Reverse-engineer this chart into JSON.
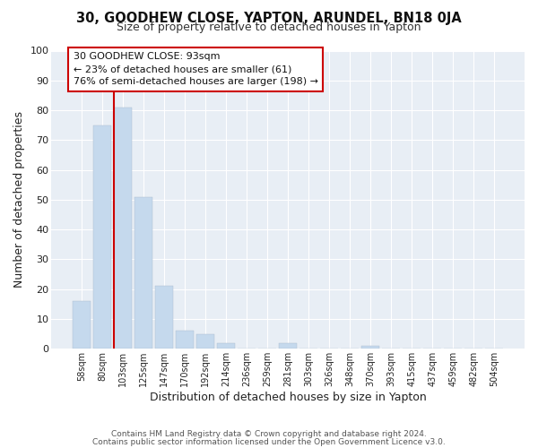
{
  "title": "30, GOODHEW CLOSE, YAPTON, ARUNDEL, BN18 0JA",
  "subtitle": "Size of property relative to detached houses in Yapton",
  "xlabel": "Distribution of detached houses by size in Yapton",
  "ylabel": "Number of detached properties",
  "bar_labels": [
    "58sqm",
    "80sqm",
    "103sqm",
    "125sqm",
    "147sqm",
    "170sqm",
    "192sqm",
    "214sqm",
    "236sqm",
    "259sqm",
    "281sqm",
    "303sqm",
    "326sqm",
    "348sqm",
    "370sqm",
    "393sqm",
    "415sqm",
    "437sqm",
    "459sqm",
    "482sqm",
    "504sqm"
  ],
  "bar_values": [
    16,
    75,
    81,
    51,
    21,
    6,
    5,
    2,
    0,
    0,
    2,
    0,
    0,
    0,
    1,
    0,
    0,
    0,
    0,
    0,
    0
  ],
  "bar_color": "#c5d9ed",
  "ylim": [
    0,
    100
  ],
  "property_label": "30 GOODHEW CLOSE: 93sqm",
  "annotation_line1": "← 23% of detached houses are smaller (61)",
  "annotation_line2": "76% of semi-detached houses are larger (198) →",
  "footer1": "Contains HM Land Registry data © Crown copyright and database right 2024.",
  "footer2": "Contains public sector information licensed under the Open Government Licence v3.0.",
  "fig_bg_color": "#ffffff",
  "plot_bg_color": "#e8eef5",
  "grid_color": "#ffffff",
  "vline_color": "#cc0000",
  "box_edge_color": "#cc0000"
}
